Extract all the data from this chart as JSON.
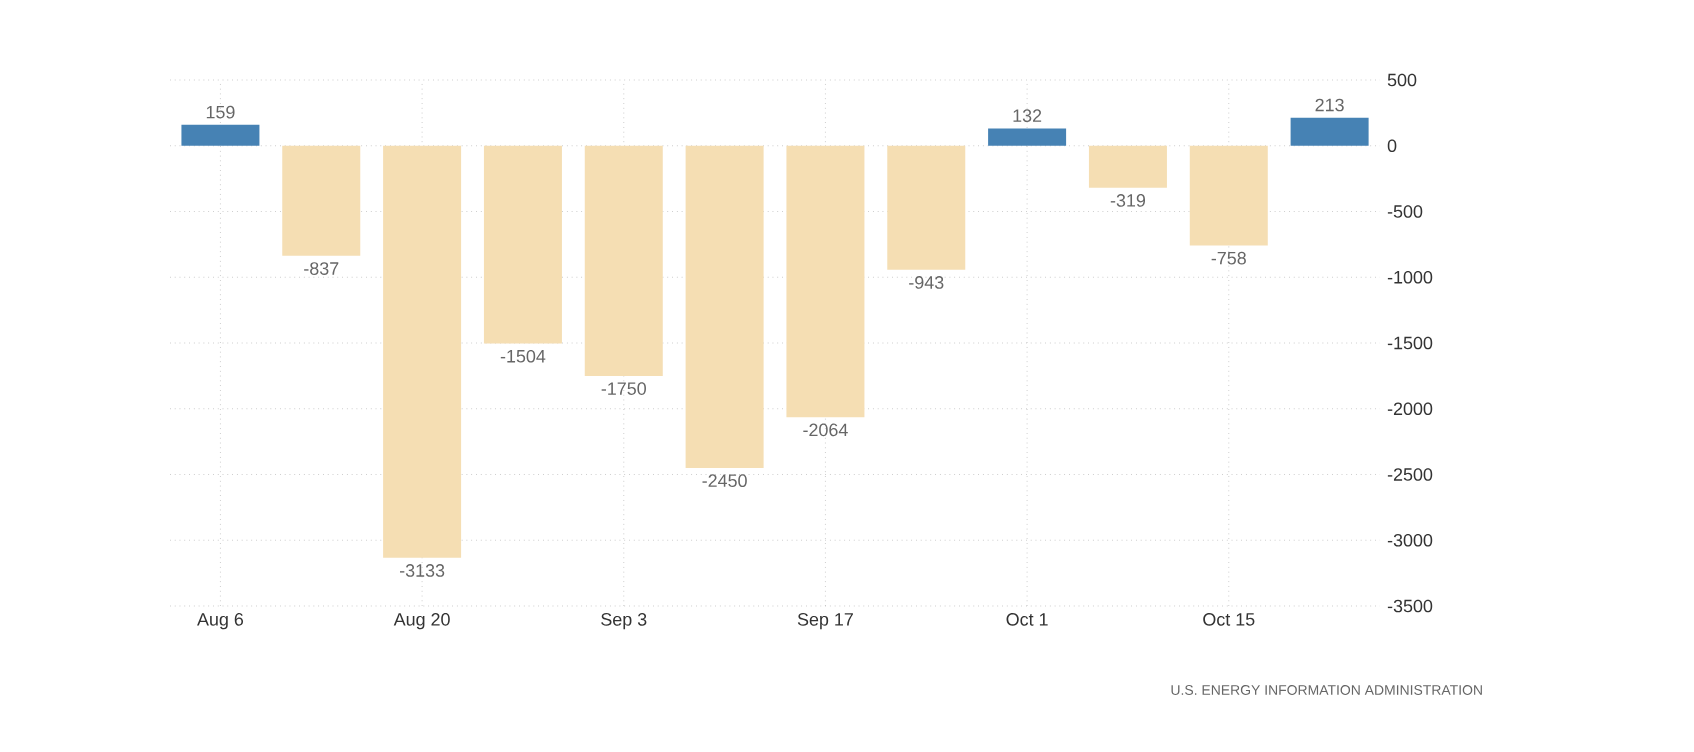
{
  "chart_data": {
    "type": "bar",
    "categories": [
      "Aug 6",
      null,
      "Aug 20",
      null,
      "Sep 3",
      null,
      "Sep 17",
      null,
      "Oct 1",
      null,
      "Oct 15",
      null
    ],
    "values": [
      159,
      -837,
      -3133,
      -1504,
      -1750,
      -2450,
      -2064,
      -943,
      132,
      -319,
      -758,
      213
    ],
    "colors": [
      "#4682b4",
      "#f5deb3",
      "#f5deb3",
      "#f5deb3",
      "#f5deb3",
      "#f5deb3",
      "#f5deb3",
      "#f5deb3",
      "#4682b4",
      "#f5deb3",
      "#f5deb3",
      "#4682b4"
    ],
    "ylim": [
      -3500,
      500
    ],
    "yticks": [
      500,
      0,
      -500,
      -1000,
      -1500,
      -2000,
      -2500,
      -3000,
      -3500
    ],
    "grid": true,
    "data_labels": true,
    "annotations": [
      "U.S. ENERGY INFORMATION ADMINISTRATION"
    ]
  }
}
